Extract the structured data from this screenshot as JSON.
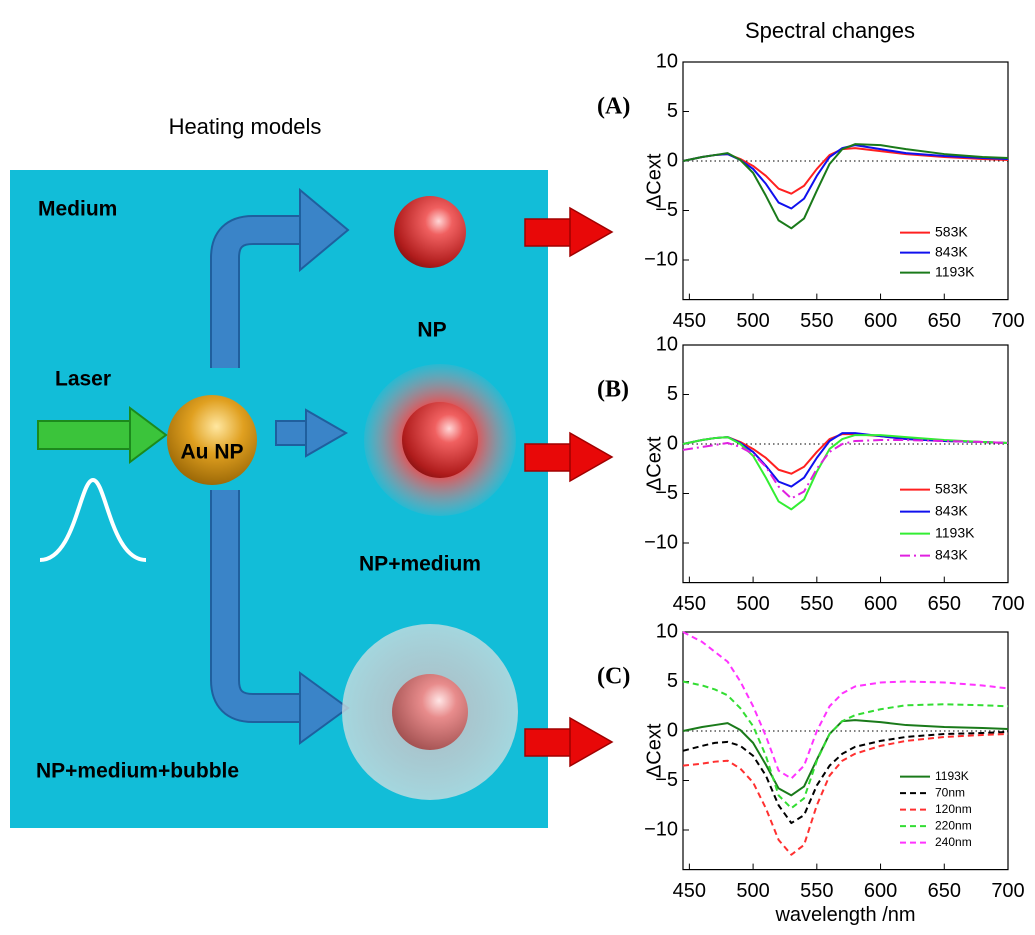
{
  "figure": {
    "left_title": "Heating models",
    "right_title": "Spectral changes"
  },
  "diagram": {
    "medium": "Medium",
    "laser": "Laser",
    "au_np": "Au NP",
    "np": "NP",
    "np_medium": "NP+medium",
    "np_medium_bubble": "NP+medium+bubble"
  },
  "chart_data": [
    {
      "type": "line",
      "panel_label": "(A)",
      "ylabel": "ΔCext",
      "x": [
        445,
        460,
        470,
        480,
        490,
        500,
        510,
        520,
        530,
        540,
        550,
        560,
        570,
        580,
        600,
        620,
        650,
        680,
        700
      ],
      "xlim": [
        445,
        700
      ],
      "ylim": [
        -14,
        10
      ],
      "xticks": [
        450,
        500,
        550,
        600,
        650,
        700
      ],
      "yticks": [
        {
          "value": -10,
          "label": "−10"
        },
        {
          "value": -5,
          "label": "−5"
        },
        0,
        5,
        10
      ],
      "series": [
        {
          "name": "583K",
          "color": "#ff2020",
          "linestyle": "solid",
          "values": [
            0,
            0.4,
            0.6,
            0.7,
            0.2,
            -0.5,
            -1.5,
            -2.8,
            -3.3,
            -2.5,
            -0.8,
            0.6,
            1.2,
            1.3,
            1.0,
            0.7,
            0.4,
            0.2,
            0.1
          ]
        },
        {
          "name": "843K",
          "color": "#1010ee",
          "linestyle": "solid",
          "values": [
            0,
            0.4,
            0.6,
            0.7,
            0.1,
            -0.8,
            -2.3,
            -4.2,
            -4.8,
            -3.8,
            -1.5,
            0.4,
            1.3,
            1.6,
            1.2,
            0.8,
            0.5,
            0.3,
            0.2
          ]
        },
        {
          "name": "1193K",
          "color": "#1a7a1a",
          "linestyle": "solid",
          "values": [
            0,
            0.4,
            0.6,
            0.8,
            0.1,
            -1.2,
            -3.5,
            -6.0,
            -6.8,
            -5.8,
            -3.0,
            -0.3,
            1.2,
            1.7,
            1.6,
            1.2,
            0.7,
            0.4,
            0.3
          ]
        }
      ]
    },
    {
      "type": "line",
      "panel_label": "(B)",
      "ylabel": "ΔCext",
      "x": [
        445,
        460,
        470,
        480,
        490,
        500,
        510,
        520,
        530,
        540,
        550,
        560,
        570,
        580,
        600,
        620,
        650,
        680,
        700
      ],
      "xlim": [
        445,
        700
      ],
      "ylim": [
        -14,
        10
      ],
      "xticks": [
        450,
        500,
        550,
        600,
        650,
        700
      ],
      "yticks": [
        {
          "value": -10,
          "label": "−10"
        },
        {
          "value": -5,
          "label": "−5"
        },
        0,
        5,
        10
      ],
      "series": [
        {
          "name": "583K",
          "color": "#ff2020",
          "linestyle": "solid",
          "values": [
            0,
            0.4,
            0.6,
            0.7,
            0.2,
            -0.5,
            -1.4,
            -2.6,
            -3.0,
            -2.3,
            -0.8,
            0.5,
            1.0,
            1.0,
            0.8,
            0.5,
            0.3,
            0.2,
            0.1
          ]
        },
        {
          "name": "843K",
          "color": "#1010ee",
          "linestyle": "solid",
          "values": [
            0,
            0.4,
            0.6,
            0.7,
            0.1,
            -0.8,
            -2.2,
            -3.8,
            -4.3,
            -3.4,
            -1.4,
            0.3,
            1.1,
            1.1,
            0.8,
            0.5,
            0.3,
            0.2,
            0.1
          ]
        },
        {
          "name": "1193K",
          "color": "#33ee33",
          "linestyle": "solid",
          "values": [
            0,
            0.4,
            0.6,
            0.7,
            0.0,
            -1.2,
            -3.4,
            -5.8,
            -6.6,
            -5.6,
            -2.8,
            -0.5,
            0.5,
            0.9,
            0.9,
            0.7,
            0.4,
            0.2,
            0.1
          ]
        },
        {
          "name": "843K",
          "color": "#e020e0",
          "linestyle": "dashdot",
          "values": [
            -0.6,
            -0.3,
            -0.1,
            0.1,
            -0.3,
            -1.0,
            -2.3,
            -4.3,
            -5.5,
            -4.8,
            -2.5,
            -0.8,
            0.0,
            0.3,
            0.4,
            0.4,
            0.3,
            0.2,
            0.1
          ]
        }
      ]
    },
    {
      "type": "line",
      "panel_label": "(C)",
      "ylabel": "ΔCext",
      "xlabel": "wavelength /nm",
      "x": [
        445,
        460,
        470,
        480,
        490,
        500,
        510,
        520,
        530,
        540,
        550,
        560,
        570,
        580,
        600,
        620,
        650,
        680,
        700
      ],
      "xlim": [
        445,
        700
      ],
      "ylim": [
        -14,
        10
      ],
      "xticks": [
        450,
        500,
        550,
        600,
        650,
        700
      ],
      "yticks": [
        {
          "value": -10,
          "label": "−10"
        },
        {
          "value": -5,
          "label": "−5"
        },
        0,
        5,
        10
      ],
      "series": [
        {
          "name": "1193K",
          "color": "#1a7a1a",
          "linestyle": "solid",
          "values": [
            0,
            0.4,
            0.6,
            0.8,
            0.1,
            -1.2,
            -3.4,
            -5.8,
            -6.5,
            -5.6,
            -2.9,
            -0.3,
            1.0,
            1.1,
            0.9,
            0.6,
            0.4,
            0.3,
            0.2
          ]
        },
        {
          "name": "70nm",
          "color": "#000000",
          "linestyle": "dashed",
          "values": [
            -2.0,
            -1.5,
            -1.2,
            -1.1,
            -1.5,
            -2.5,
            -4.5,
            -7.5,
            -9.3,
            -8.5,
            -5.5,
            -3.5,
            -2.3,
            -1.6,
            -1.0,
            -0.6,
            -0.3,
            -0.2,
            -0.1
          ]
        },
        {
          "name": "120nm",
          "color": "#ff3030",
          "linestyle": "dashed",
          "values": [
            -3.5,
            -3.3,
            -3.1,
            -3.0,
            -3.8,
            -5.2,
            -7.8,
            -11,
            -12.5,
            -11.5,
            -7.5,
            -4.5,
            -3.0,
            -2.3,
            -1.5,
            -1.0,
            -0.6,
            -0.4,
            -0.3
          ]
        },
        {
          "name": "220nm",
          "color": "#33dd33",
          "linestyle": "dashed",
          "values": [
            5,
            4.6,
            4.2,
            3.6,
            2.3,
            0.5,
            -2.5,
            -6.5,
            -7.8,
            -6.8,
            -3.0,
            -0.3,
            1.0,
            1.6,
            2.2,
            2.6,
            2.7,
            2.6,
            2.5
          ]
        },
        {
          "name": "240nm",
          "color": "#ff33ff",
          "linestyle": "dashed",
          "values": [
            10,
            9.0,
            8.0,
            7.0,
            5.0,
            2.5,
            -0.5,
            -4.0,
            -4.8,
            -3.5,
            0.0,
            2.5,
            3.8,
            4.5,
            4.9,
            5.0,
            4.9,
            4.6,
            4.3
          ]
        }
      ]
    }
  ]
}
